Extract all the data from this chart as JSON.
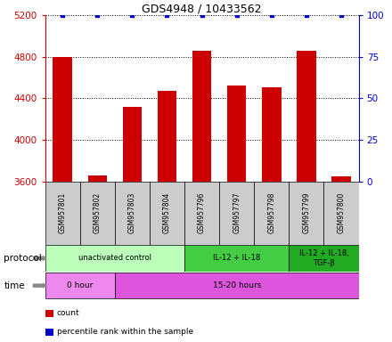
{
  "title": "GDS4948 / 10433562",
  "samples": [
    "GSM957801",
    "GSM957802",
    "GSM957803",
    "GSM957804",
    "GSM957796",
    "GSM957797",
    "GSM957798",
    "GSM957799",
    "GSM957800"
  ],
  "bar_values": [
    4800,
    3660,
    4320,
    4470,
    4860,
    4520,
    4510,
    4860,
    3650
  ],
  "percentile_values": [
    100,
    100,
    100,
    100,
    100,
    100,
    100,
    100,
    100
  ],
  "ylim_left": [
    3600,
    5200
  ],
  "ylim_right": [
    0,
    100
  ],
  "yticks_left": [
    3600,
    4000,
    4400,
    4800,
    5200
  ],
  "yticks_right": [
    0,
    25,
    50,
    75,
    100
  ],
  "bar_color": "#cc0000",
  "dot_color": "#0000cc",
  "bar_width": 0.55,
  "protocol_groups": [
    {
      "label": "unactivated control",
      "start": 0,
      "end": 4,
      "color": "#bbffbb"
    },
    {
      "label": "IL-12 + IL-18",
      "start": 4,
      "end": 7,
      "color": "#44cc44"
    },
    {
      "label": "IL-12 + IL-18,\nTGF-β",
      "start": 7,
      "end": 9,
      "color": "#22aa22"
    }
  ],
  "time_groups": [
    {
      "label": "0 hour",
      "start": 0,
      "end": 2,
      "color": "#ee88ee"
    },
    {
      "label": "15-20 hours",
      "start": 2,
      "end": 9,
      "color": "#dd55dd"
    }
  ],
  "legend_items": [
    {
      "color": "#cc0000",
      "label": "count"
    },
    {
      "color": "#0000cc",
      "label": "percentile rank within the sample"
    }
  ],
  "left_axis_color": "#cc0000",
  "right_axis_color": "#0000cc",
  "sample_box_color": "#cccccc",
  "protocol_label": "protocol",
  "time_label": "time"
}
